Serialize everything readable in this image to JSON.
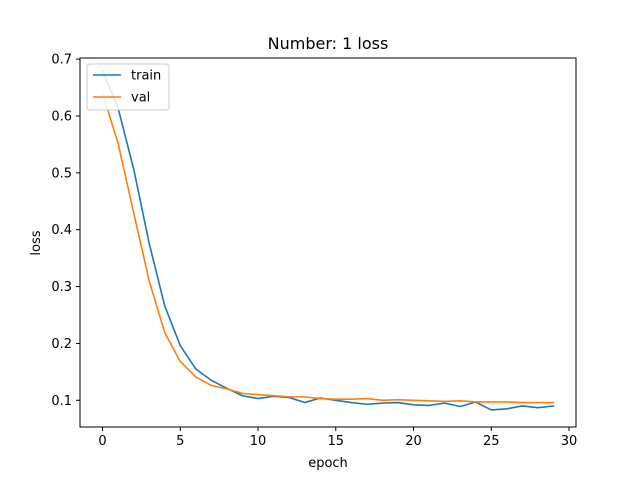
{
  "chart_data": {
    "type": "line",
    "title": "Number: 1 loss",
    "xlabel": "epoch",
    "ylabel": "loss",
    "xlim": [
      -1.45,
      30.45
    ],
    "ylim": [
      0.053,
      0.702
    ],
    "xticks": [
      0,
      5,
      10,
      15,
      20,
      25,
      30
    ],
    "yticks": [
      0.1,
      0.2,
      0.3,
      0.4,
      0.5,
      0.6,
      0.7
    ],
    "xtick_labels": [
      "0",
      "5",
      "10",
      "15",
      "20",
      "25",
      "30"
    ],
    "ytick_labels": [
      "0.1",
      "0.2",
      "0.3",
      "0.4",
      "0.5",
      "0.6",
      "0.7"
    ],
    "grid": false,
    "legend_position": "top-left",
    "x": [
      0,
      1,
      2,
      3,
      4,
      5,
      6,
      7,
      8,
      9,
      10,
      11,
      12,
      13,
      14,
      15,
      16,
      17,
      18,
      19,
      20,
      21,
      22,
      23,
      24,
      25,
      26,
      27,
      28,
      29
    ],
    "series": [
      {
        "name": "train",
        "color": "#1f77b4",
        "values": [
          0.68,
          0.614,
          0.507,
          0.376,
          0.266,
          0.196,
          0.155,
          0.135,
          0.121,
          0.108,
          0.103,
          0.107,
          0.105,
          0.096,
          0.104,
          0.1,
          0.096,
          0.093,
          0.095,
          0.096,
          0.092,
          0.091,
          0.095,
          0.089,
          0.097,
          0.083,
          0.085,
          0.09,
          0.087,
          0.09
        ]
      },
      {
        "name": "val",
        "color": "#ff7f0e",
        "values": [
          0.64,
          0.552,
          0.43,
          0.31,
          0.219,
          0.168,
          0.141,
          0.126,
          0.12,
          0.112,
          0.11,
          0.108,
          0.106,
          0.106,
          0.103,
          0.102,
          0.102,
          0.103,
          0.1,
          0.101,
          0.1,
          0.099,
          0.098,
          0.099,
          0.097,
          0.097,
          0.097,
          0.096,
          0.096,
          0.096
        ]
      }
    ]
  }
}
